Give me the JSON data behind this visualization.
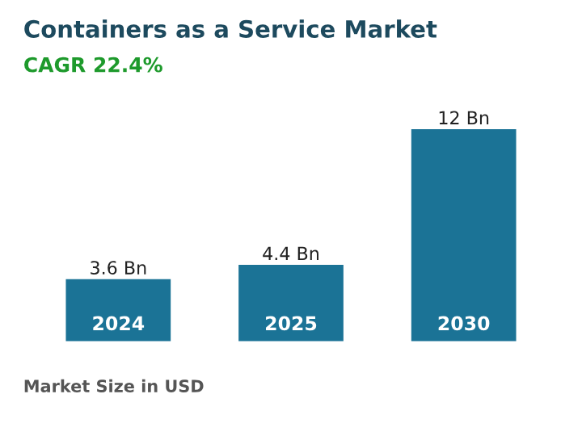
{
  "chart_data": {
    "type": "bar",
    "title": "Containers as a Service Market",
    "subtitle": "CAGR 22.4%",
    "categories": [
      "2024",
      "2025",
      "2030"
    ],
    "values": [
      3.6,
      4.4,
      12
    ],
    "value_labels": [
      "3.6 Bn",
      "4.4 Bn",
      "12 Bn"
    ],
    "color": "#1b7396",
    "annotations": [
      "Market Size in USD"
    ]
  }
}
